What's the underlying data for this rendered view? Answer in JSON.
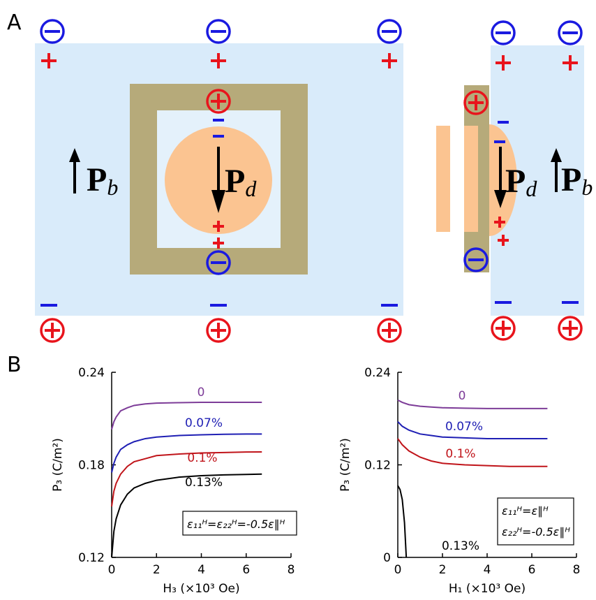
{
  "panels": [
    "A",
    "B"
  ],
  "diagram": {
    "labels": [
      {
        "symbol": "P",
        "subscript": "b"
      },
      {
        "symbol": "P",
        "subscript": "d"
      },
      {
        "symbol": "P",
        "subscript": "d"
      },
      {
        "symbol": "P",
        "subscript": "b"
      }
    ]
  },
  "chart_data": [
    {
      "type": "line",
      "xlabel": "H₃ (×10³ Oe)",
      "ylabel": "P₃ (C/m²)",
      "xlim": [
        0,
        8
      ],
      "xticks": [
        0,
        2,
        4,
        6,
        8
      ],
      "ylim": [
        0.12,
        0.24
      ],
      "yticks": [
        0.12,
        0.18,
        0.24
      ],
      "annotation": [
        "ε₁₁ᴴ=ε₂₂ᴴ=-0.5ε∥ᴴ"
      ],
      "series": [
        {
          "name": "0",
          "color": "#7d3c98",
          "x": [
            0,
            0.1,
            0.2,
            0.4,
            0.7,
            1,
            1.5,
            2,
            3,
            4,
            5,
            6,
            6.7
          ],
          "values": [
            0.203,
            0.208,
            0.211,
            0.215,
            0.217,
            0.2185,
            0.2195,
            0.22,
            0.2203,
            0.2205,
            0.2205,
            0.2205,
            0.2205
          ]
        },
        {
          "name": "0.07%",
          "color": "#1f1fb4",
          "x": [
            0,
            0.1,
            0.2,
            0.4,
            0.7,
            1,
            1.5,
            2,
            3,
            4,
            5,
            6,
            6.7
          ],
          "values": [
            0.175,
            0.181,
            0.185,
            0.19,
            0.193,
            0.195,
            0.197,
            0.198,
            0.199,
            0.1995,
            0.1998,
            0.2,
            0.2
          ]
        },
        {
          "name": "0.1%",
          "color": "#c0141a",
          "x": [
            0,
            0.1,
            0.2,
            0.4,
            0.7,
            1,
            1.5,
            2,
            3,
            4,
            5,
            6,
            6.7
          ],
          "values": [
            0.153,
            0.163,
            0.168,
            0.174,
            0.179,
            0.182,
            0.184,
            0.186,
            0.187,
            0.1877,
            0.188,
            0.1883,
            0.1884
          ]
        },
        {
          "name": "0.13%",
          "color": "#000000",
          "x": [
            0,
            0.1,
            0.2,
            0.4,
            0.7,
            1,
            1.5,
            2,
            3,
            4,
            5,
            6,
            6.7
          ],
          "values": [
            0.12,
            0.137,
            0.145,
            0.154,
            0.161,
            0.165,
            0.168,
            0.17,
            0.172,
            0.173,
            0.1735,
            0.1738,
            0.174
          ]
        }
      ]
    },
    {
      "type": "line",
      "xlabel": "H₁ (×10³ Oe)",
      "ylabel": "P₃ (C/m²)",
      "xlim": [
        0,
        8
      ],
      "xticks": [
        0,
        2,
        4,
        6,
        8
      ],
      "ylim": [
        0,
        0.24
      ],
      "yticks": [
        0,
        0.12,
        0.24
      ],
      "annotation": [
        "ε₁₁ᴴ=ε∥ᴴ",
        "ε₂₂ᴴ=-0.5ε∥ᴴ"
      ],
      "series": [
        {
          "name": "0",
          "color": "#7d3c98",
          "x": [
            0,
            0.2,
            0.5,
            1,
            1.5,
            2,
            3,
            4,
            5,
            6,
            6.7
          ],
          "values": [
            0.204,
            0.201,
            0.198,
            0.196,
            0.195,
            0.194,
            0.1935,
            0.193,
            0.193,
            0.193,
            0.193
          ]
        },
        {
          "name": "0.07%",
          "color": "#1f1fb4",
          "x": [
            0,
            0.2,
            0.5,
            1,
            1.5,
            2,
            3,
            4,
            5,
            6,
            6.7
          ],
          "values": [
            0.176,
            0.17,
            0.165,
            0.16,
            0.158,
            0.156,
            0.155,
            0.154,
            0.154,
            0.154,
            0.154
          ]
        },
        {
          "name": "0.1%",
          "color": "#c0141a",
          "x": [
            0,
            0.2,
            0.5,
            1,
            1.5,
            2,
            3,
            4,
            5,
            6,
            6.7
          ],
          "values": [
            0.154,
            0.146,
            0.138,
            0.13,
            0.125,
            0.122,
            0.12,
            0.119,
            0.118,
            0.118,
            0.118
          ]
        },
        {
          "name": "0.13%",
          "color": "#000000",
          "x": [
            0,
            0.1,
            0.2,
            0.3,
            0.38
          ],
          "values": [
            0.093,
            0.088,
            0.075,
            0.045,
            0
          ]
        }
      ]
    }
  ]
}
